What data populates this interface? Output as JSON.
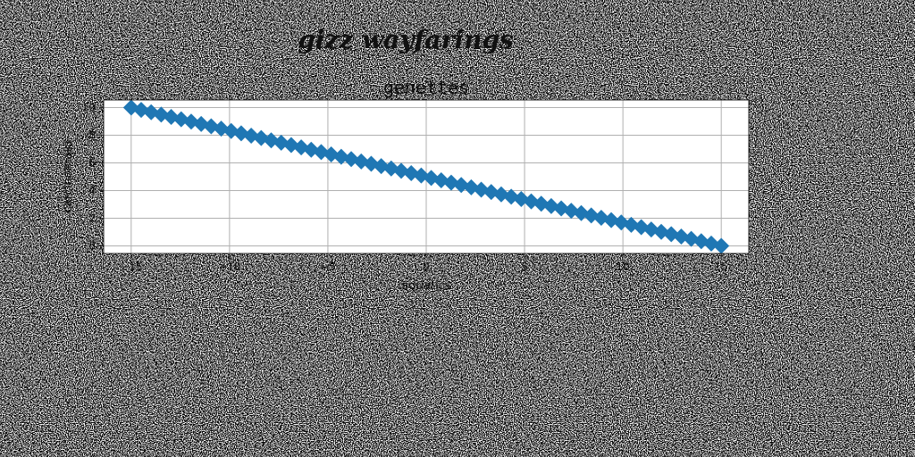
{
  "figure": {
    "suptitle": "gizz wayfarings"
  },
  "chart_data": {
    "type": "scatter",
    "title": "genettes",
    "xlabel": "aquatics",
    "ylabel": "carcinomata",
    "xlim": [
      -16.4,
      16.4
    ],
    "ylim": [
      -0.55,
      10.55
    ],
    "xticks": [
      -15,
      -10,
      -5,
      0,
      5,
      10,
      15
    ],
    "yticks": [
      0,
      2,
      4,
      6,
      8,
      10
    ],
    "grid": true,
    "marker": "diamond",
    "color": "#1f77b4",
    "series": [
      {
        "x_start": -15.0,
        "x_end": 15.0,
        "y_start": 10.0,
        "y_end": 0.0,
        "count": 60
      }
    ]
  }
}
